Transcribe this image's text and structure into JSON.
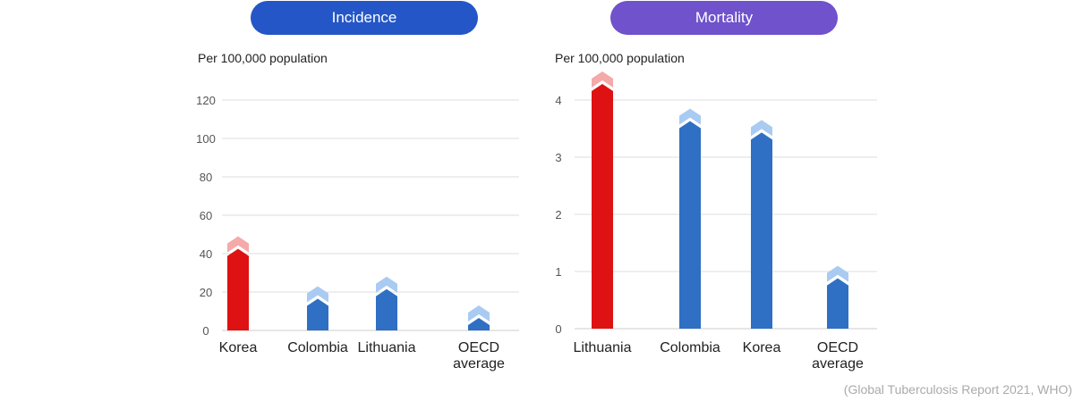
{
  "colors": {
    "incidence_pill": "#2456c7",
    "mortality_pill": "#6f52cc",
    "highlight_bar": "#de1212",
    "highlight_arrow": "#f5a9a9",
    "normal_bar": "#2f6fc4",
    "normal_arrow": "#a9cbf2",
    "grid": "#dddddd"
  },
  "source": "(Global Tuberculosis Report 2021, WHO)",
  "chart_data": [
    {
      "type": "bar",
      "title": "Incidence",
      "ylabel": "Per 100,000 population",
      "ylim": [
        0,
        120
      ],
      "yticks": [
        0,
        20,
        40,
        60,
        80,
        100,
        120
      ],
      "grid": true,
      "categories": [
        [
          "Korea"
        ],
        [
          "Colombia"
        ],
        [
          "Lithuania"
        ],
        [
          "OECD",
          "average"
        ]
      ],
      "values": [
        49,
        23,
        28,
        13
      ],
      "highlight": [
        true,
        false,
        false,
        false
      ]
    },
    {
      "type": "bar",
      "title": "Mortality",
      "ylabel": "Per 100,000 population",
      "ylim": [
        0,
        4
      ],
      "yticks": [
        0,
        1,
        2,
        3,
        4
      ],
      "grid": true,
      "categories": [
        [
          "Lithuania"
        ],
        [
          "Colombia"
        ],
        [
          "Korea"
        ],
        [
          "OECD",
          "average"
        ]
      ],
      "values": [
        4.5,
        3.85,
        3.65,
        1.1
      ],
      "highlight": [
        true,
        false,
        false,
        false
      ]
    }
  ]
}
